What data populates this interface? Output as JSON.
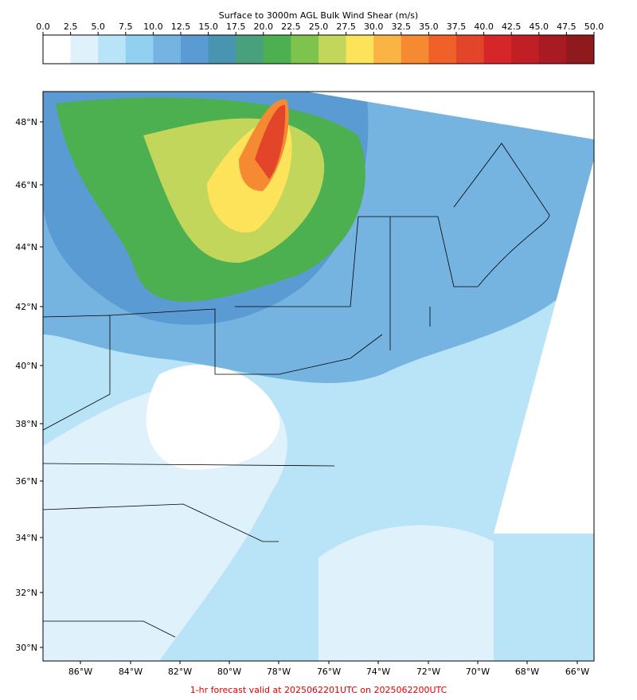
{
  "colorbar": {
    "title": "Surface to 3000m AGL Bulk Wind Shear (m/s)",
    "ticks": [
      {
        "value": 0,
        "label": "0.0"
      },
      {
        "value": 2.5,
        "label": "2.5"
      },
      {
        "value": 5,
        "label": "5.0"
      },
      {
        "value": 7.5,
        "label": "7.5"
      },
      {
        "value": 10,
        "label": "10.0"
      },
      {
        "value": 12.5,
        "label": "12.5"
      },
      {
        "value": 15,
        "label": "15.0"
      },
      {
        "value": 17.5,
        "label": "17.5"
      },
      {
        "value": 20,
        "label": "20.0"
      },
      {
        "value": 22.5,
        "label": "22.5"
      },
      {
        "value": 25,
        "label": "25.0"
      },
      {
        "value": 27.5,
        "label": "27.5"
      },
      {
        "value": 30,
        "label": "30.0"
      },
      {
        "value": 32.5,
        "label": "32.5"
      },
      {
        "value": 35,
        "label": "35.0"
      },
      {
        "value": 37.5,
        "label": "37.5"
      },
      {
        "value": 40,
        "label": "40.0"
      },
      {
        "value": 42.5,
        "label": "42.5"
      },
      {
        "value": 45,
        "label": "45.0"
      },
      {
        "value": 47.5,
        "label": "47.5"
      },
      {
        "value": 50,
        "label": "50.0"
      }
    ],
    "colors": [
      "#ffffff",
      "#dff1fb",
      "#b9e3f7",
      "#92d0f0",
      "#75b4e0",
      "#5a9bd4",
      "#4994b0",
      "#48a07c",
      "#4cb050",
      "#7fc34f",
      "#c1d65a",
      "#fde35a",
      "#f9b444",
      "#f68a33",
      "#f06029",
      "#e2452a",
      "#d7262a",
      "#c11f26",
      "#a81b22",
      "#8e1a1e"
    ]
  },
  "map": {
    "lat_labels": [
      "48°N",
      "46°N",
      "44°N",
      "42°N",
      "40°N",
      "38°N",
      "36°N",
      "34°N",
      "32°N",
      "30°N"
    ],
    "lon_labels": [
      "86°W",
      "84°W",
      "82°W",
      "80°W",
      "78°W",
      "76°W",
      "74°W",
      "72°W",
      "70°W",
      "68°W",
      "66°W"
    ]
  },
  "footer": "1-hr forecast valid at 2025062201UTC on 2025062200UTC"
}
